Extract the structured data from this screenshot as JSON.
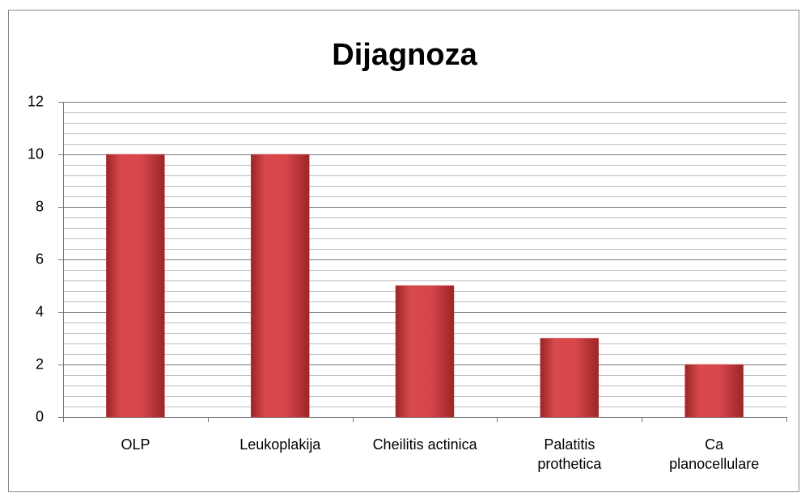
{
  "chart_data": {
    "type": "bar",
    "title": "Dijagnoza",
    "categories": [
      "OLP",
      "Leukoplakija",
      "Cheilitis actinica",
      "Palatitis\nprothetica",
      "Ca\nplanocellulare"
    ],
    "values": [
      10,
      10,
      5,
      3,
      2
    ],
    "color": "#c8393b",
    "ylim": [
      0,
      12
    ],
    "yticks": [
      0,
      2,
      4,
      6,
      8,
      10,
      12
    ],
    "minor_yticks": [
      0.4,
      0.8,
      1.2,
      1.6,
      2.4,
      2.8,
      3.2,
      3.6,
      4.4,
      4.8,
      5.2,
      5.6,
      6.4,
      6.8,
      7.2,
      7.6,
      8.4,
      8.8,
      9.2,
      9.6,
      10.4,
      10.8,
      11.2,
      11.6
    ],
    "grid": true
  }
}
